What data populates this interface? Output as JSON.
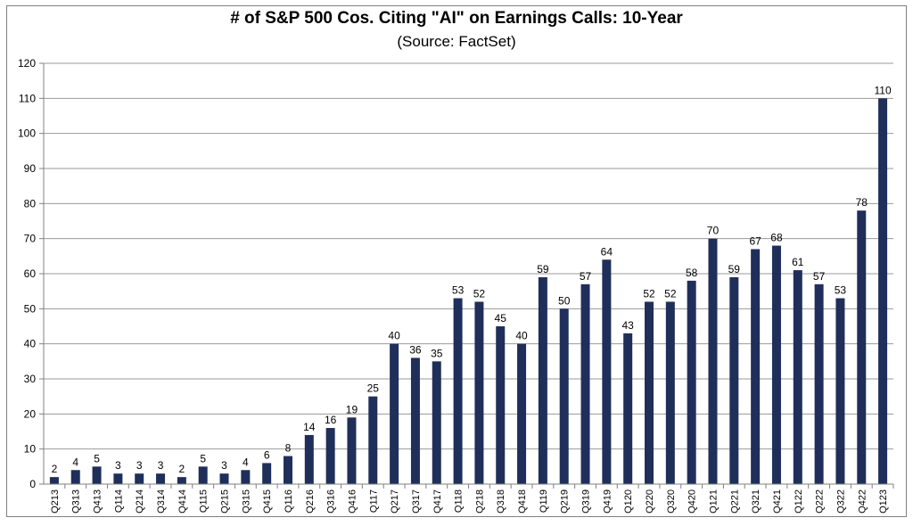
{
  "chart_data": {
    "type": "bar",
    "title": "# of S&P 500 Cos. Citing \"AI\" on Earnings Calls: 10-Year",
    "subtitle": "(Source: FactSet)",
    "xlabel": "",
    "ylabel": "",
    "ylim": [
      0,
      120
    ],
    "yticks": [
      0,
      10,
      20,
      30,
      40,
      50,
      60,
      70,
      80,
      90,
      100,
      110,
      120
    ],
    "grid": true,
    "legend": "none",
    "bar_color": "#1f2f5a",
    "categories": [
      "Q213",
      "Q313",
      "Q413",
      "Q114",
      "Q214",
      "Q314",
      "Q414",
      "Q115",
      "Q215",
      "Q315",
      "Q415",
      "Q116",
      "Q216",
      "Q316",
      "Q416",
      "Q117",
      "Q217",
      "Q317",
      "Q417",
      "Q118",
      "Q218",
      "Q318",
      "Q418",
      "Q119",
      "Q219",
      "Q319",
      "Q419",
      "Q120",
      "Q220",
      "Q320",
      "Q420",
      "Q121",
      "Q221",
      "Q321",
      "Q421",
      "Q122",
      "Q222",
      "Q322",
      "Q422",
      "Q123"
    ],
    "values": [
      2,
      4,
      5,
      3,
      3,
      3,
      2,
      5,
      3,
      4,
      6,
      8,
      14,
      16,
      19,
      25,
      40,
      36,
      35,
      53,
      52,
      45,
      40,
      59,
      50,
      57,
      64,
      43,
      52,
      52,
      58,
      70,
      59,
      67,
      68,
      61,
      57,
      53,
      78,
      110
    ]
  }
}
